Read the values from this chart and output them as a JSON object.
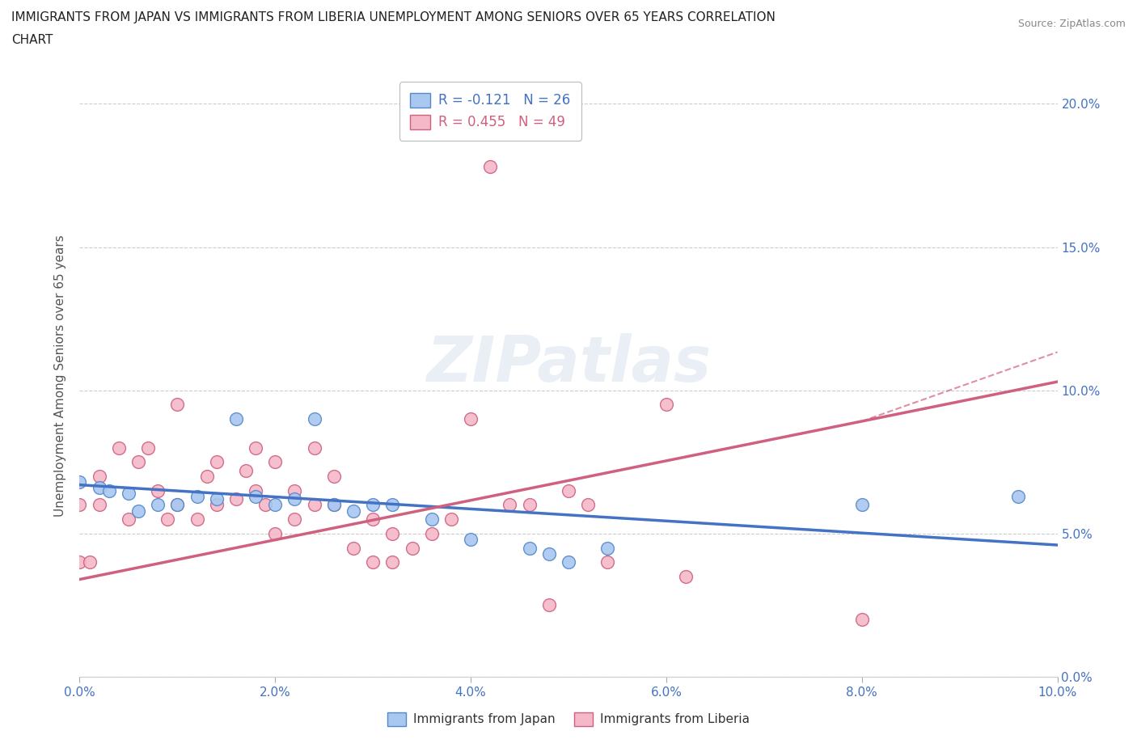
{
  "title_line1": "IMMIGRANTS FROM JAPAN VS IMMIGRANTS FROM LIBERIA UNEMPLOYMENT AMONG SENIORS OVER 65 YEARS CORRELATION",
  "title_line2": "CHART",
  "source": "Source: ZipAtlas.com",
  "ylabel": "Unemployment Among Seniors over 65 years",
  "watermark": "ZIPatlas",
  "xlim": [
    0.0,
    0.1
  ],
  "ylim": [
    0.0,
    0.21
  ],
  "xticks": [
    0.0,
    0.02,
    0.04,
    0.06,
    0.08,
    0.1
  ],
  "yticks": [
    0.0,
    0.05,
    0.1,
    0.15,
    0.2
  ],
  "japan_color": "#a8c8f0",
  "japan_edge_color": "#5588cc",
  "japan_line_color": "#4472c4",
  "liberia_color": "#f5b8c8",
  "liberia_edge_color": "#d06080",
  "liberia_line_color": "#d06080",
  "japan_R": -0.121,
  "japan_N": 26,
  "liberia_R": 0.455,
  "liberia_N": 49,
  "japan_x": [
    0.0,
    0.002,
    0.003,
    0.005,
    0.006,
    0.008,
    0.01,
    0.012,
    0.014,
    0.016,
    0.018,
    0.02,
    0.022,
    0.024,
    0.026,
    0.028,
    0.03,
    0.032,
    0.036,
    0.04,
    0.046,
    0.048,
    0.05,
    0.054,
    0.08,
    0.096
  ],
  "japan_y": [
    0.068,
    0.066,
    0.065,
    0.064,
    0.058,
    0.06,
    0.06,
    0.063,
    0.062,
    0.09,
    0.063,
    0.06,
    0.062,
    0.09,
    0.06,
    0.058,
    0.06,
    0.06,
    0.055,
    0.048,
    0.045,
    0.043,
    0.04,
    0.045,
    0.06,
    0.063
  ],
  "liberia_x": [
    0.0,
    0.0,
    0.001,
    0.002,
    0.002,
    0.004,
    0.005,
    0.006,
    0.007,
    0.008,
    0.009,
    0.01,
    0.01,
    0.012,
    0.013,
    0.014,
    0.014,
    0.016,
    0.017,
    0.018,
    0.018,
    0.019,
    0.02,
    0.02,
    0.022,
    0.022,
    0.024,
    0.024,
    0.026,
    0.026,
    0.028,
    0.03,
    0.03,
    0.032,
    0.032,
    0.034,
    0.036,
    0.038,
    0.04,
    0.042,
    0.044,
    0.046,
    0.048,
    0.05,
    0.052,
    0.054,
    0.06,
    0.062,
    0.08
  ],
  "liberia_y": [
    0.04,
    0.06,
    0.04,
    0.07,
    0.06,
    0.08,
    0.055,
    0.075,
    0.08,
    0.065,
    0.055,
    0.06,
    0.095,
    0.055,
    0.07,
    0.06,
    0.075,
    0.062,
    0.072,
    0.065,
    0.08,
    0.06,
    0.05,
    0.075,
    0.065,
    0.055,
    0.06,
    0.08,
    0.06,
    0.07,
    0.045,
    0.04,
    0.055,
    0.04,
    0.05,
    0.045,
    0.05,
    0.055,
    0.09,
    0.178,
    0.06,
    0.06,
    0.025,
    0.065,
    0.06,
    0.04,
    0.095,
    0.035,
    0.02
  ],
  "background_color": "#ffffff",
  "grid_color": "#cccccc",
  "label_color": "#4472c4",
  "text_color": "#555555"
}
